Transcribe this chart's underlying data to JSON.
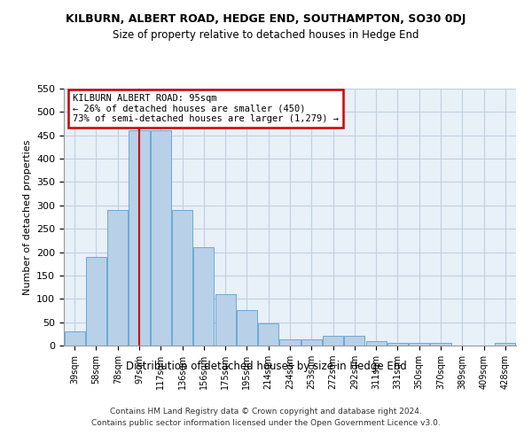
{
  "title": "KILBURN, ALBERT ROAD, HEDGE END, SOUTHAMPTON, SO30 0DJ",
  "subtitle": "Size of property relative to detached houses in Hedge End",
  "xlabel": "Distribution of detached houses by size in Hedge End",
  "ylabel": "Number of detached properties",
  "categories": [
    "39sqm",
    "58sqm",
    "78sqm",
    "97sqm",
    "117sqm",
    "136sqm",
    "156sqm",
    "175sqm",
    "195sqm",
    "214sqm",
    "234sqm",
    "253sqm",
    "272sqm",
    "292sqm",
    "311sqm",
    "331sqm",
    "350sqm",
    "370sqm",
    "389sqm",
    "409sqm",
    "428sqm"
  ],
  "values": [
    30,
    190,
    290,
    460,
    460,
    290,
    210,
    110,
    75,
    47,
    13,
    13,
    20,
    20,
    10,
    5,
    5,
    5,
    0,
    0,
    5
  ],
  "bar_color": "#b8d0e8",
  "bar_edge_color": "#6aaad4",
  "vline_color": "#cc0000",
  "vline_x": 3.0,
  "annotation_line1": "KILBURN ALBERT ROAD: 95sqm",
  "annotation_line2": "← 26% of detached houses are smaller (450)",
  "annotation_line3": "73% of semi-detached houses are larger (1,279) →",
  "annotation_box_color": "#cc0000",
  "ylim": [
    0,
    550
  ],
  "yticks": [
    0,
    50,
    100,
    150,
    200,
    250,
    300,
    350,
    400,
    450,
    500,
    550
  ],
  "footer_line1": "Contains HM Land Registry data © Crown copyright and database right 2024.",
  "footer_line2": "Contains public sector information licensed under the Open Government Licence v3.0.",
  "bg_color": "#ffffff",
  "plot_bg_color": "#e8f0f8",
  "grid_color": "#c0d0e0"
}
